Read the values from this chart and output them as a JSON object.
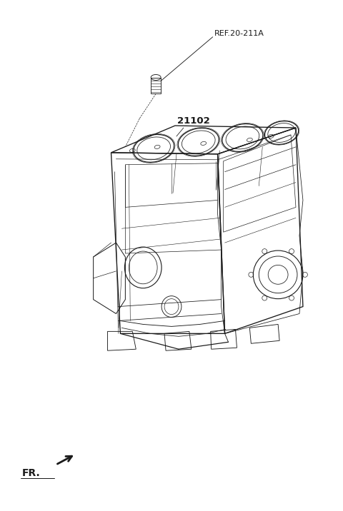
{
  "bg_color": "#ffffff",
  "line_color": "#1a1a1a",
  "line_width": 0.8,
  "fig_width": 4.8,
  "fig_height": 7.16,
  "dpi": 100,
  "ref_label": "REF.20-211A",
  "ref_label_fontsize": 8.0,
  "part_label": "21102",
  "part_label_fontsize": 9.5,
  "fr_label": "FR.",
  "fr_label_fontsize": 10.0
}
